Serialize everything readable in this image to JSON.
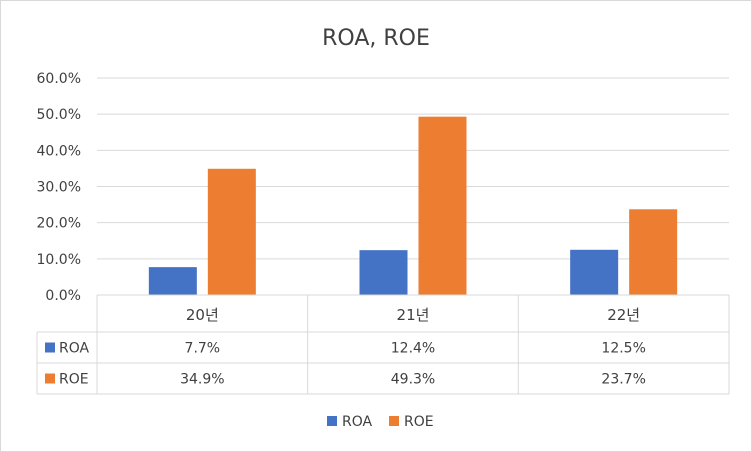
{
  "chart_data": {
    "type": "bar",
    "title": "ROA, ROE",
    "categories": [
      "20년",
      "21년",
      "22년"
    ],
    "series": [
      {
        "name": "ROA",
        "values": [
          7.7,
          12.4,
          12.5
        ],
        "labels": [
          "7.7%",
          "12.4%",
          "12.5%"
        ],
        "color": "#4472C4"
      },
      {
        "name": "ROE",
        "values": [
          34.9,
          49.3,
          23.7
        ],
        "labels": [
          "34.9%",
          "49.3%",
          "23.7%"
        ],
        "color": "#ED7D31"
      }
    ],
    "yticks": [
      "0.0%",
      "10.0%",
      "20.0%",
      "30.0%",
      "40.0%",
      "50.0%",
      "60.0%"
    ],
    "ylim": [
      0,
      60
    ],
    "grid": true,
    "data_table": true,
    "legend_position": "bottom"
  }
}
